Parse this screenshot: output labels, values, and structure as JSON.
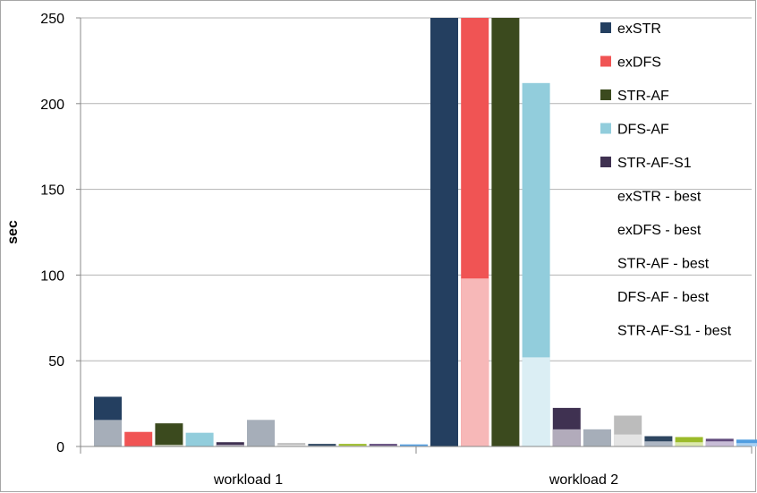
{
  "chart_data": {
    "type": "bar",
    "title": "",
    "xlabel": "",
    "ylabel": "sec",
    "ylim": [
      0,
      250
    ],
    "yticks": [
      "0",
      "50",
      "100",
      "150",
      "200",
      "250"
    ],
    "categories": [
      "workload 1",
      "workload 2"
    ],
    "grid": "horizontal",
    "legend_position": "right",
    "series": [
      {
        "name": "exSTR",
        "color": "#243f60",
        "values": [
          29,
          250
        ]
      },
      {
        "name": "exDFS",
        "color": "#f05454",
        "values": [
          8.5,
          250
        ]
      },
      {
        "name": "STR-AF",
        "color": "#3b4a1e",
        "values": [
          13.5,
          250
        ]
      },
      {
        "name": "DFS-AF",
        "color": "#92cddc",
        "values": [
          8,
          212
        ]
      },
      {
        "name": "STR-AF-S1",
        "color": "#3f3151",
        "values": [
          2.5,
          22.5
        ]
      },
      {
        "name": "exSTR - best",
        "color": "#a6aeb9",
        "values": [
          15.5,
          10
        ]
      },
      {
        "name": "exDFS - best",
        "color": "#bcbcbc",
        "values": [
          2,
          18
        ]
      },
      {
        "name": "STR-AF - best",
        "color": "#2e4660",
        "values": [
          1.5,
          6
        ]
      },
      {
        "name": "DFS-AF - best",
        "color": "#9bbb2a",
        "values": [
          1.5,
          5.5
        ]
      },
      {
        "name": "STR-AF-S1 - best",
        "color": "#604a7b",
        "values": [
          1.5,
          4.5
        ]
      },
      {
        "name": "",
        "color": "#4f9de0",
        "values": [
          1.2,
          4
        ]
      }
    ],
    "overlays": [
      {
        "over_series": "exSTR",
        "color": "#a6aeb9",
        "values": [
          15.5,
          0
        ]
      },
      {
        "over_series": "exDFS",
        "color": "#f7b8b8",
        "values": [
          0,
          98
        ]
      },
      {
        "over_series": "STR-AF",
        "color": "#c4c9b4",
        "values": [
          1,
          0
        ]
      },
      {
        "over_series": "DFS-AF",
        "color": "#dbeef4",
        "values": [
          0,
          52
        ]
      },
      {
        "over_series": "STR-AF-S1",
        "color": "#b2abbb",
        "values": [
          1,
          10
        ]
      },
      {
        "over_series": "exDFS - best",
        "color": "#e4e4e4",
        "values": [
          1,
          7
        ]
      },
      {
        "over_series": "STR-AF - best",
        "color": "#adb6c3",
        "values": [
          0.5,
          3
        ]
      },
      {
        "over_series": "DFS-AF - best",
        "color": "#dbe8ad",
        "values": [
          0.5,
          2.5
        ]
      },
      {
        "over_series": "STR-AF-S1 - best",
        "color": "#c7bcd6",
        "values": [
          0.5,
          3
        ]
      },
      {
        "over_series": "",
        "color": "#a9d0f2",
        "values": [
          0.4,
          2
        ]
      }
    ]
  }
}
